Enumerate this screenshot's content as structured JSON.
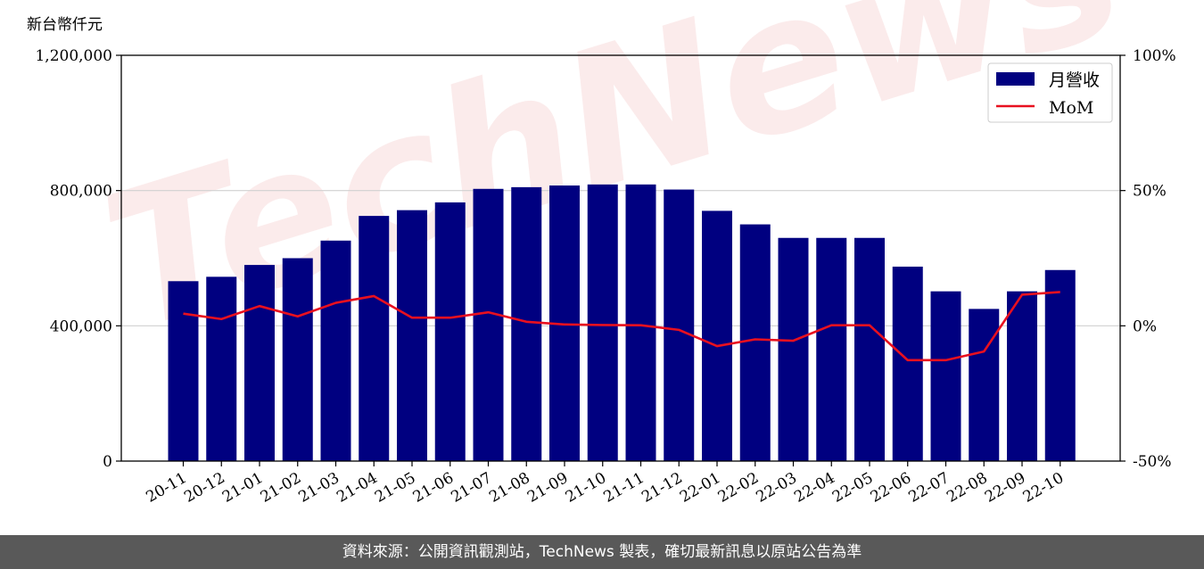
{
  "chart_data": {
    "type": "bar",
    "y_unit_label": "新台幣仟元",
    "categories": [
      "20-11",
      "20-12",
      "21-01",
      "21-02",
      "21-03",
      "21-04",
      "21-05",
      "21-06",
      "21-07",
      "21-08",
      "21-09",
      "21-10",
      "21-11",
      "21-12",
      "22-01",
      "22-02",
      "22-03",
      "22-04",
      "22-05",
      "22-06",
      "22-07",
      "22-08",
      "22-09",
      "22-10"
    ],
    "series": [
      {
        "name": "月營收",
        "type": "bar",
        "axis": "left",
        "color": "#000080",
        "values": [
          532000,
          545000,
          580000,
          600000,
          652000,
          725000,
          742000,
          765000,
          805000,
          810000,
          815000,
          818000,
          818000,
          803000,
          740000,
          700000,
          660000,
          660000,
          660000,
          575000,
          502000,
          450000,
          502000,
          565000
        ]
      },
      {
        "name": "MoM",
        "type": "line",
        "axis": "right",
        "color": "#e8101f",
        "values": [
          4.5,
          2.5,
          7.3,
          3.5,
          8.5,
          11.0,
          3.0,
          3.0,
          5.0,
          1.5,
          0.5,
          0.3,
          0.2,
          -1.5,
          -7.5,
          -5.0,
          -5.5,
          0.2,
          0.2,
          -12.7,
          -12.7,
          -9.5,
          11.5,
          12.5
        ]
      }
    ],
    "ylim_left": [
      0,
      1200000
    ],
    "yticks_left": [
      0,
      400000,
      800000,
      1200000
    ],
    "yticks_left_labels": [
      "0",
      "400,000",
      "800,000",
      "1,200,000"
    ],
    "ylim_right": [
      -50,
      100
    ],
    "yticks_right": [
      -50,
      0,
      50,
      100
    ],
    "yticks_right_labels": [
      "-50%",
      "0%",
      "50%",
      "100%"
    ],
    "grid": "horizontal",
    "legend_position": "top-right"
  },
  "watermark": "TechNews",
  "footer": "資料來源：公開資訊觀測站，TechNews 製表，確切最新訊息以原站公告為準"
}
